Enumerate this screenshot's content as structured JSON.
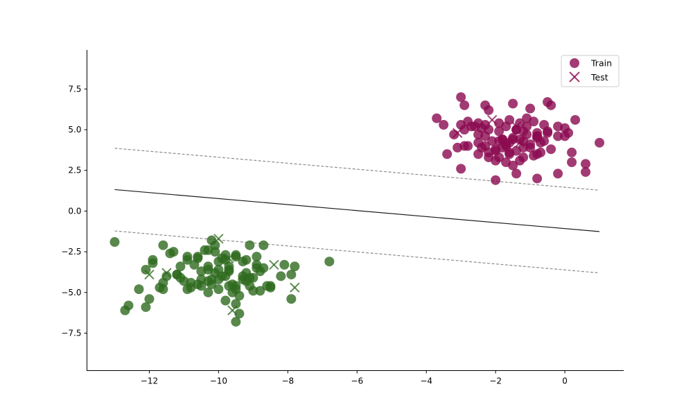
{
  "chart_data": {
    "type": "scatter",
    "xlim": [
      -13.8,
      1.7
    ],
    "ylim": [
      -9.8,
      9.9
    ],
    "x_ticks": [
      -12,
      -10,
      -8,
      -6,
      -4,
      -2,
      0
    ],
    "x_tick_labels": [
      "−12",
      "−10",
      "−8",
      "−6",
      "−4",
      "−2",
      "0"
    ],
    "y_ticks": [
      -7.5,
      -5.0,
      -2.5,
      0.0,
      2.5,
      5.0,
      7.5
    ],
    "y_tick_labels": [
      "−7.5",
      "−5.0",
      "−2.5",
      "0.0",
      "2.5",
      "5.0",
      "7.5"
    ],
    "grid": false,
    "legend": {
      "position": "top-right",
      "entries": [
        {
          "label": "Train",
          "marker": "circle"
        },
        {
          "label": "Test",
          "marker": "x"
        }
      ]
    },
    "colors": {
      "class_a": "#8b0a50",
      "class_b": "#2e6a1e",
      "decision_line": "#1a1a1a",
      "margin_line": "#8c8c8c"
    },
    "decision_boundary": {
      "x": [
        -13,
        1
      ],
      "y": [
        1.32,
        -1.26
      ]
    },
    "margins": [
      {
        "x": [
          -13,
          1
        ],
        "y": [
          3.86,
          1.28
        ]
      },
      {
        "x": [
          -13,
          1
        ],
        "y": [
          -1.22,
          -3.8
        ]
      }
    ],
    "series": [
      {
        "label": "Train",
        "class": "a",
        "x": [
          -3.0,
          -2.9,
          -2.3,
          -2.2,
          -1.5,
          -0.5,
          -0.4,
          -1.0,
          -3.7,
          -3.5,
          -3.0,
          -2.8,
          -2.5,
          -2.3,
          -1.9,
          -1.6,
          -1.3,
          -1.1,
          -0.9,
          -0.6,
          -0.2,
          0.0,
          0.3,
          -3.2,
          -2.9,
          -2.6,
          -2.2,
          -1.9,
          -1.4,
          -1.2,
          -0.8,
          -0.5,
          -0.2,
          0.1,
          -3.4,
          -2.9,
          -2.5,
          -2.3,
          -1.8,
          -1.5,
          -1.1,
          -0.8,
          -0.5,
          0.0,
          0.2,
          -3.1,
          -2.8,
          -2.4,
          -2.0,
          -1.7,
          -1.4,
          -1.0,
          -0.7,
          -0.4,
          0.2,
          0.6,
          1.0,
          -2.5,
          -2.2,
          -1.9,
          -1.6,
          -1.3,
          -0.8,
          -3.0,
          -2.0,
          -1.4,
          -0.8,
          -0.2,
          0.6,
          -2.7,
          -2.4,
          -2.1,
          -1.8,
          -1.6,
          -1.3,
          -1.0,
          -0.7,
          -2.0,
          -1.7,
          -1.5,
          -1.2,
          -2.2,
          -2.0,
          -1.8,
          -1.6,
          -1.2,
          -0.9,
          -0.6,
          -2.5,
          -1.9,
          -1.5,
          -1.2,
          -0.8,
          -2.3,
          -1.7,
          -1.4,
          -1.1,
          -0.8,
          -1.7
        ],
        "y": [
          7.0,
          6.5,
          6.5,
          6.2,
          6.6,
          6.7,
          6.5,
          6.3,
          5.7,
          5.3,
          5.3,
          5.5,
          5.4,
          5.3,
          5.4,
          5.6,
          5.4,
          5.7,
          5.5,
          5.3,
          5.2,
          5.1,
          5.6,
          4.7,
          5.0,
          5.2,
          5.0,
          4.9,
          5.0,
          4.9,
          4.8,
          4.8,
          4.6,
          4.8,
          3.5,
          4.0,
          4.2,
          4.0,
          4.4,
          4.4,
          4.7,
          4.6,
          4.9,
          4.6,
          3.6,
          3.9,
          4.0,
          3.9,
          3.8,
          4.0,
          3.7,
          3.9,
          3.6,
          3.8,
          3.0,
          2.9,
          4.2,
          3.5,
          3.3,
          3.3,
          3.5,
          3.1,
          3.5,
          2.6,
          1.9,
          2.3,
          2.0,
          2.3,
          2.4,
          5.2,
          5.1,
          4.3,
          4.4,
          4.2,
          4.4,
          4.1,
          4.2,
          3.1,
          3.0,
          2.8,
          3.3,
          3.6,
          3.7,
          3.9,
          3.6,
          3.9,
          3.4,
          4.3,
          4.7,
          4.3,
          4.5,
          4.3,
          4.6,
          4.6,
          5.2,
          5.0,
          5.2,
          4.5,
          4.1
        ],
        "marker": "circle"
      },
      {
        "label": "Train",
        "class": "b",
        "x": [
          -13.0,
          -12.7,
          -12.6,
          -12.3,
          -12.1,
          -12.0,
          -11.7,
          -11.6,
          -11.4,
          -11.2,
          -11.0,
          -10.9,
          -10.8,
          -10.6,
          -10.5,
          -10.3,
          -10.2,
          -10.0,
          -9.8,
          -9.6,
          -9.4,
          -9.2,
          -9.0,
          -8.8,
          -8.6,
          -12.1,
          -11.9,
          -11.6,
          -11.3,
          -11.1,
          -10.9,
          -10.7,
          -10.5,
          -10.3,
          -10.1,
          -9.9,
          -9.7,
          -9.5,
          -9.3,
          -9.1,
          -8.9,
          -8.7,
          -8.5,
          -8.2,
          -7.9,
          -11.9,
          -11.5,
          -11.1,
          -10.8,
          -10.5,
          -10.3,
          -10.1,
          -9.9,
          -9.7,
          -9.5,
          -9.3,
          -9.1,
          -8.9,
          -8.7,
          -8.5,
          -7.8,
          -11.6,
          -11.2,
          -10.9,
          -10.6,
          -10.3,
          -10.0,
          -9.8,
          -9.5,
          -9.2,
          -9.0,
          -8.8,
          -8.1,
          -7.9,
          -10.4,
          -10.2,
          -10.0,
          -9.7,
          -9.5,
          -9.2,
          -8.9,
          -6.8,
          -10.6,
          -10.3,
          -10.1,
          -9.8,
          -9.6,
          -9.3,
          -9.1,
          -9.5,
          -9.7,
          -10.0,
          -9.8,
          -9.5,
          -9.4,
          -10.2
        ],
        "y": [
          -1.9,
          -6.1,
          -5.8,
          -4.8,
          -5.9,
          -5.4,
          -4.7,
          -4.4,
          -2.6,
          -3.9,
          -4.3,
          -4.8,
          -4.4,
          -4.5,
          -4.6,
          -5.0,
          -4.5,
          -4.8,
          -5.5,
          -5.0,
          -5.2,
          -4.3,
          -4.9,
          -3.7,
          -4.6,
          -3.6,
          -3.2,
          -2.1,
          -2.5,
          -3.4,
          -2.8,
          -3.3,
          -3.7,
          -3.6,
          -2.5,
          -2.9,
          -3.4,
          -2.8,
          -3.1,
          -2.1,
          -2.8,
          -2.1,
          -4.6,
          -4.0,
          -3.9,
          -3.0,
          -4.0,
          -4.1,
          -4.7,
          -4.2,
          -4.3,
          -3.8,
          -4.0,
          -3.7,
          -4.6,
          -4.2,
          -4.1,
          -3.5,
          -3.5,
          -4.7,
          -3.4,
          -4.8,
          -3.9,
          -3.0,
          -2.8,
          -3.4,
          -4.2,
          -2.7,
          -2.7,
          -3.0,
          -4.1,
          -4.9,
          -3.3,
          -5.4,
          -2.4,
          -1.8,
          -3.1,
          -3.6,
          -4.8,
          -3.8,
          -3.3,
          -3.1,
          -2.9,
          -2.4,
          -2.1,
          -4.0,
          -4.5,
          -4.0,
          -4.6,
          -5.7,
          -4.6,
          -3.6,
          -3.0,
          -6.8,
          -6.3,
          -4.2
        ],
        "marker": "circle"
      },
      {
        "label": "Test",
        "class": "a",
        "x": [
          -3.1,
          -2.1,
          -1.4,
          -1.3
        ],
        "y": [
          4.8,
          5.6,
          5.2,
          4.2
        ],
        "marker": "x"
      },
      {
        "label": "Test",
        "class": "b",
        "x": [
          -12.0,
          -11.5,
          -10.0,
          -9.6,
          -8.4,
          -7.8,
          -9.7
        ],
        "y": [
          -3.9,
          -3.8,
          -1.7,
          -6.1,
          -3.3,
          -4.7,
          -2.9
        ],
        "marker": "x"
      }
    ]
  }
}
